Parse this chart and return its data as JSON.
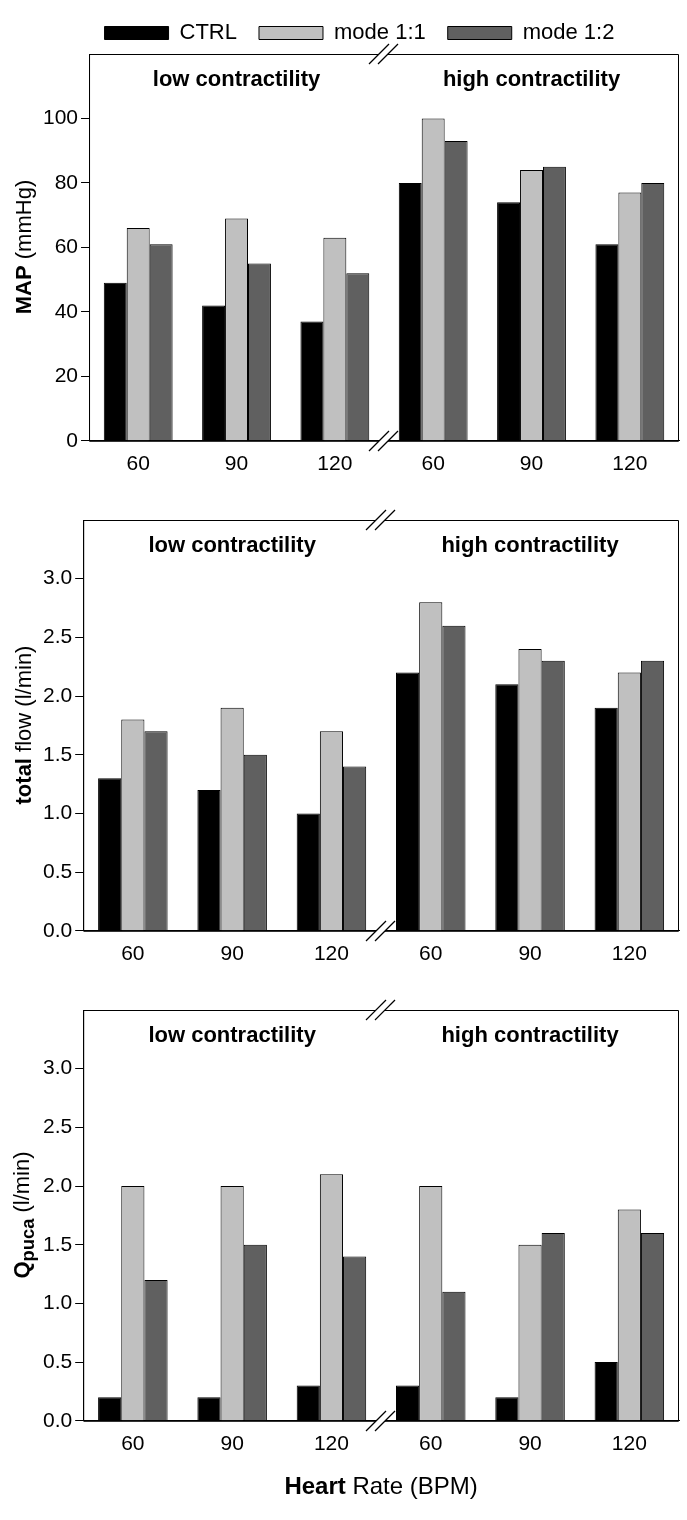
{
  "chart_data": [
    {
      "type": "bar",
      "ylabel": "MAP (mmHg)",
      "categories": [
        "60",
        "90",
        "120",
        "60",
        "90",
        "120"
      ],
      "series": [
        {
          "name": "CTRL",
          "color": "#000000",
          "values": [
            49,
            42,
            37,
            80,
            74,
            61
          ]
        },
        {
          "name": "mode 1:1",
          "color": "#c0c0c0",
          "values": [
            66,
            69,
            63,
            100,
            84,
            77
          ]
        },
        {
          "name": "mode 1:2",
          "color": "#606060",
          "values": [
            61,
            55,
            52,
            93,
            85,
            80
          ]
        }
      ],
      "ylim": [
        0,
        120
      ],
      "yticks": [
        0,
        20,
        40,
        60,
        80,
        100
      ],
      "grid": false,
      "legend": "top",
      "annotations": [
        "low contractility",
        "high contractility"
      ]
    },
    {
      "type": "bar",
      "ylabel": "total flow (l/min)",
      "categories": [
        "60",
        "90",
        "120",
        "60",
        "90",
        "120"
      ],
      "series": [
        {
          "color": "#000000",
          "values": [
            1.3,
            1.2,
            1.0,
            2.2,
            2.1,
            1.9
          ]
        },
        {
          "color": "#c0c0c0",
          "values": [
            1.8,
            1.9,
            1.7,
            2.8,
            2.4,
            2.2
          ]
        },
        {
          "color": "#606060",
          "values": [
            1.7,
            1.5,
            1.4,
            2.6,
            2.3,
            2.3
          ]
        }
      ],
      "ylim": [
        0,
        3.5
      ],
      "yticks": [
        {
          "value": 0,
          "label": "0.0"
        },
        {
          "value": 0.5,
          "label": "0.5"
        },
        {
          "value": 1,
          "label": "1.0"
        },
        {
          "value": 1.5,
          "label": "1.5"
        },
        {
          "value": 2,
          "label": "2.0"
        },
        {
          "value": 2.5,
          "label": "2.5"
        },
        {
          "value": 3,
          "label": "3.0"
        }
      ],
      "grid": false,
      "annotations": [
        "low contractility",
        "high contractility"
      ]
    },
    {
      "type": "bar",
      "ylabel": "Q$_{puca}$ (l/min)",
      "xlabel": "Heart Rate (BPM)",
      "categories": [
        "60",
        "90",
        "120",
        "60",
        "90",
        "120"
      ],
      "series": [
        {
          "color": "#000000",
          "values": [
            0.2,
            0.2,
            0.3,
            0.3,
            0.2,
            0.5
          ]
        },
        {
          "color": "#c0c0c0",
          "values": [
            2.0,
            2.0,
            2.1,
            2.0,
            1.5,
            1.8
          ]
        },
        {
          "color": "#606060",
          "values": [
            1.2,
            1.5,
            1.4,
            1.1,
            1.6,
            1.6
          ]
        }
      ],
      "ylim": [
        0,
        3.5
      ],
      "yticks": [
        {
          "value": 0,
          "label": "0.0"
        },
        {
          "value": 0.5,
          "label": "0.5"
        },
        {
          "value": 1,
          "label": "1.0"
        },
        {
          "value": 1.5,
          "label": "1.5"
        },
        {
          "value": 2,
          "label": "2.0"
        },
        {
          "value": 2.5,
          "label": "2.5"
        },
        {
          "value": 3,
          "label": "3.0"
        }
      ],
      "grid": false,
      "annotations": [
        "low contractility",
        "high contractility"
      ]
    }
  ]
}
